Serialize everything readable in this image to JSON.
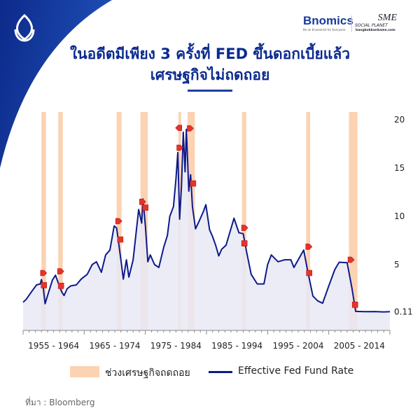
{
  "header": {
    "title_line1": "ในอดีตมีเพียง 3 ครั้งที่ FED ขึ้นดอกเบี้ยแล้ว",
    "title_line2": "เศรษฐกิจไม่ถดถอย",
    "brand": "Bnomics",
    "brand_tagline": "Be an Economist for Everyone",
    "partner": "SME",
    "partner_sub": "SOCIAL PLANET",
    "partner_url": "bangkokbanksme.com"
  },
  "colors": {
    "line": "#0d1a8a",
    "area": "#e9e9f6",
    "recession": "#fbd3b3",
    "marker": "#e8322a",
    "brand": "#0b2a8f"
  },
  "legend": {
    "recession": "ช่วงเศรษฐกิจถดถอย",
    "rate": "Effective Fed Fund Rate"
  },
  "source": "ที่มา : Bloomberg",
  "chart_data": {
    "type": "line",
    "title": "ในอดีตมีเพียง 3 ครั้งที่ FED ขึ้นดอกเบี้ยแล้ว เศรษฐกิจไม่ถดถอย",
    "ylabel": "",
    "xlabel": "",
    "ylim": [
      0,
      20
    ],
    "xlim": [
      1955,
      2015
    ],
    "y_ticks": [
      {
        "value": 20,
        "label": "20"
      },
      {
        "value": 15,
        "label": "15"
      },
      {
        "value": 10,
        "label": "10"
      },
      {
        "value": 5,
        "label": "5"
      },
      {
        "value": 0.11,
        "label": "0.11"
      }
    ],
    "x_tick_labels": [
      "1955 - 1964",
      "1965 - 1974",
      "1975 - 1984",
      "1985 - 1994",
      "1995 - 2004",
      "2005 - 2014"
    ],
    "legend_position": "bottom",
    "series": [
      {
        "name": "Effective Fed Fund Rate",
        "points": [
          [
            1955.0,
            1.1
          ],
          [
            1955.5,
            1.4
          ],
          [
            1956.4,
            2.2
          ],
          [
            1957.2,
            2.9
          ],
          [
            1957.8,
            3.0
          ],
          [
            1958.0,
            3.45
          ],
          [
            1958.3,
            2.6
          ],
          [
            1958.6,
            0.95
          ],
          [
            1959.2,
            2.2
          ],
          [
            1959.8,
            3.4
          ],
          [
            1960.3,
            3.9
          ],
          [
            1960.8,
            3.0
          ],
          [
            1961.3,
            2.2
          ],
          [
            1961.7,
            1.8
          ],
          [
            1962.2,
            2.5
          ],
          [
            1962.8,
            2.8
          ],
          [
            1963.7,
            2.9
          ],
          [
            1964.5,
            3.5
          ],
          [
            1965.5,
            4.0
          ],
          [
            1966.3,
            5.0
          ],
          [
            1967.0,
            5.3
          ],
          [
            1967.8,
            4.2
          ],
          [
            1968.5,
            6.0
          ],
          [
            1969.2,
            6.5
          ],
          [
            1969.9,
            9.0
          ],
          [
            1970.3,
            8.8
          ],
          [
            1971.0,
            5.5
          ],
          [
            1971.4,
            3.5
          ],
          [
            1971.9,
            5.5
          ],
          [
            1972.3,
            3.7
          ],
          [
            1973.0,
            5.5
          ],
          [
            1973.9,
            10.7
          ],
          [
            1974.4,
            9.3
          ],
          [
            1974.6,
            11.8
          ],
          [
            1975.0,
            9.0
          ],
          [
            1975.4,
            5.3
          ],
          [
            1975.8,
            6.0
          ],
          [
            1976.5,
            5.0
          ],
          [
            1977.2,
            4.7
          ],
          [
            1978.0,
            6.8
          ],
          [
            1978.6,
            8.0
          ],
          [
            1979.0,
            10.0
          ],
          [
            1979.6,
            11.0
          ],
          [
            1980.0,
            13.8
          ],
          [
            1980.3,
            16.6
          ],
          [
            1980.6,
            9.7
          ],
          [
            1980.9,
            13.0
          ],
          [
            1981.2,
            18.7
          ],
          [
            1981.5,
            14.6
          ],
          [
            1981.7,
            19.0
          ],
          [
            1981.9,
            16.0
          ],
          [
            1982.1,
            12.6
          ],
          [
            1982.4,
            14.3
          ],
          [
            1982.7,
            11.0
          ],
          [
            1983.2,
            8.7
          ],
          [
            1983.8,
            9.5
          ],
          [
            1984.5,
            10.5
          ],
          [
            1984.9,
            11.2
          ],
          [
            1985.5,
            8.6
          ],
          [
            1986.0,
            7.9
          ],
          [
            1986.5,
            7.0
          ],
          [
            1987.0,
            5.9
          ],
          [
            1987.5,
            6.6
          ],
          [
            1988.2,
            7.0
          ],
          [
            1988.8,
            8.3
          ],
          [
            1989.5,
            9.8
          ],
          [
            1990.3,
            8.3
          ],
          [
            1991.0,
            8.2
          ],
          [
            1991.6,
            6.2
          ],
          [
            1992.3,
            4.0
          ],
          [
            1993.3,
            3.0
          ],
          [
            1994.4,
            3.0
          ],
          [
            1995.0,
            5.0
          ],
          [
            1995.6,
            6.0
          ],
          [
            1996.7,
            5.3
          ],
          [
            1997.8,
            5.5
          ],
          [
            1998.8,
            5.5
          ],
          [
            1999.3,
            4.7
          ],
          [
            2000.0,
            5.5
          ],
          [
            2000.9,
            6.5
          ],
          [
            2001.5,
            4.5
          ],
          [
            2002.4,
            1.75
          ],
          [
            2003.2,
            1.25
          ],
          [
            2004.0,
            1.0
          ],
          [
            2005.0,
            2.8
          ],
          [
            2006.0,
            4.5
          ],
          [
            2006.7,
            5.25
          ],
          [
            2008.0,
            5.2
          ],
          [
            2008.8,
            2.5
          ],
          [
            2009.4,
            0.15
          ],
          [
            2011.0,
            0.12
          ],
          [
            2012.5,
            0.14
          ],
          [
            2014.0,
            0.1
          ],
          [
            2015.0,
            0.12
          ]
        ]
      }
    ],
    "recessions": [
      [
        1958.0,
        1958.75
      ],
      [
        1960.75,
        1961.5
      ],
      [
        1970.3,
        1971.1
      ],
      [
        1974.2,
        1975.4
      ],
      [
        1980.4,
        1980.85
      ],
      [
        1981.9,
        1983.1
      ],
      [
        1990.8,
        1991.5
      ],
      [
        2001.3,
        2001.95
      ],
      [
        2008.3,
        2009.7
      ]
    ],
    "markers": [
      {
        "x": 1958.3,
        "y": 4.13,
        "kind": "hike"
      },
      {
        "x": 1958.4,
        "y": 2.87,
        "kind": "cut"
      },
      {
        "x": 1961.1,
        "y": 4.3,
        "kind": "hike"
      },
      {
        "x": 1961.2,
        "y": 2.8,
        "kind": "cut"
      },
      {
        "x": 1970.6,
        "y": 9.5,
        "kind": "hike"
      },
      {
        "x": 1970.9,
        "y": 7.6,
        "kind": "cut"
      },
      {
        "x": 1974.5,
        "y": 11.5,
        "kind": "hike"
      },
      {
        "x": 1975.0,
        "y": 10.9,
        "kind": "cut"
      },
      {
        "x": 1980.5,
        "y": 19.15,
        "kind": "hike-left"
      },
      {
        "x": 1982.3,
        "y": 19.1,
        "kind": "hike"
      },
      {
        "x": 1980.6,
        "y": 17.1,
        "kind": "hike"
      },
      {
        "x": 1982.8,
        "y": 13.4,
        "kind": "cut"
      },
      {
        "x": 1991.2,
        "y": 8.8,
        "kind": "hike"
      },
      {
        "x": 1991.2,
        "y": 7.2,
        "kind": "cut"
      },
      {
        "x": 2001.7,
        "y": 6.85,
        "kind": "hike"
      },
      {
        "x": 2001.8,
        "y": 4.13,
        "kind": "cut"
      },
      {
        "x": 2008.6,
        "y": 5.5,
        "kind": "hike"
      },
      {
        "x": 2009.3,
        "y": 0.85,
        "kind": "cut"
      }
    ]
  }
}
